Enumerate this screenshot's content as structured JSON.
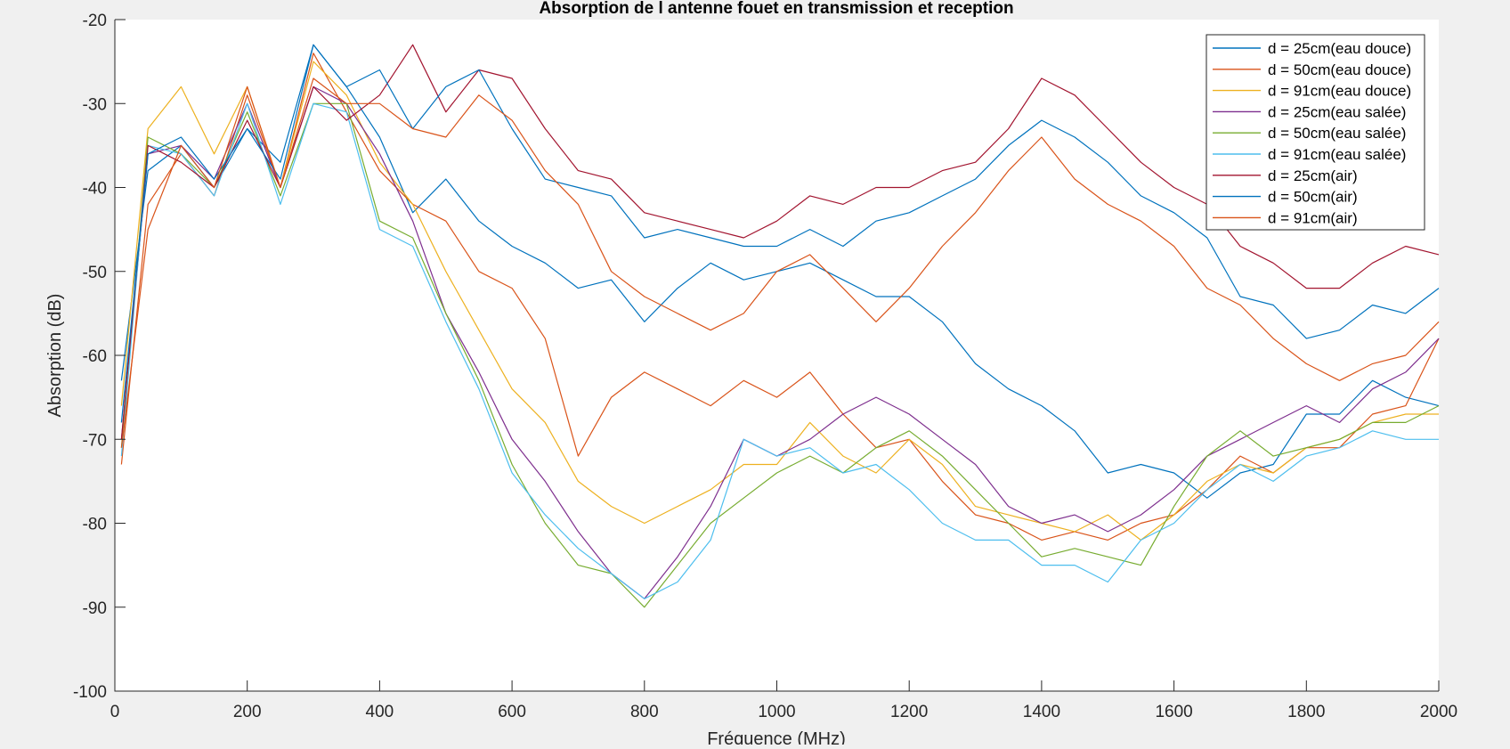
{
  "chart_data": {
    "type": "line",
    "title": "Absorption de l antenne fouet en transmission et reception",
    "xlabel": "Fréquence (MHz)",
    "ylabel": "Absorption (dB)",
    "xlim": [
      0,
      2000
    ],
    "ylim": [
      -100,
      -20
    ],
    "x_ticks": [
      0,
      200,
      400,
      600,
      800,
      1000,
      1200,
      1400,
      1600,
      1800,
      2000
    ],
    "y_ticks": [
      -20,
      -30,
      -40,
      -50,
      -60,
      -70,
      -80,
      -90,
      -100
    ],
    "x_tick_labels": [
      "0",
      "200",
      "400",
      "600",
      "800",
      "1000",
      "1200",
      "1400",
      "1600",
      "1800",
      "2000"
    ],
    "y_tick_labels": [
      "-20",
      "-30",
      "-40",
      "-50",
      "-60",
      "-70",
      "-80",
      "-90",
      "-100"
    ],
    "grid": false,
    "legend_position": "top-right",
    "x": [
      10,
      50,
      100,
      150,
      200,
      250,
      300,
      350,
      400,
      450,
      500,
      550,
      600,
      650,
      700,
      750,
      800,
      850,
      900,
      950,
      1000,
      1050,
      1100,
      1150,
      1200,
      1250,
      1300,
      1350,
      1400,
      1450,
      1500,
      1550,
      1600,
      1650,
      1700,
      1750,
      1800,
      1850,
      1900,
      1950,
      2000
    ],
    "series": [
      {
        "name": "d = 25cm(eau douce)",
        "color": "#0072BD",
        "values": [
          -63,
          -38,
          -35,
          -40,
          -33,
          -37,
          -23,
          -28,
          -34,
          -43,
          -39,
          -44,
          -47,
          -49,
          -52,
          -51,
          -56,
          -52,
          -49,
          -51,
          -50,
          -49,
          -51,
          -53,
          -53,
          -56,
          -61,
          -64,
          -66,
          -69,
          -74,
          -73,
          -74,
          -77,
          -74,
          -73,
          -67,
          -67,
          -63,
          -65,
          -66
        ]
      },
      {
        "name": "d = 50cm(eau douce)",
        "color": "#D95319",
        "values": [
          -73,
          -42,
          -36,
          -41,
          -29,
          -40,
          -24,
          -31,
          -38,
          -42,
          -44,
          -50,
          -52,
          -58,
          -72,
          -65,
          -62,
          -64,
          -66,
          -63,
          -65,
          -62,
          -67,
          -71,
          -70,
          -75,
          -79,
          -80,
          -82,
          -81,
          -82,
          -80,
          -79,
          -76,
          -72,
          -74,
          -71,
          -71,
          -67,
          -66,
          -58
        ]
      },
      {
        "name": "d = 91cm(eau douce)",
        "color": "#EDB120",
        "values": [
          -66,
          -33,
          -28,
          -36,
          -28,
          -40,
          -25,
          -29,
          -37,
          -42,
          -50,
          -57,
          -64,
          -68,
          -75,
          -78,
          -80,
          -78,
          -76,
          -73,
          -73,
          -68,
          -72,
          -74,
          -70,
          -73,
          -78,
          -79,
          -80,
          -81,
          -79,
          -82,
          -79,
          -75,
          -73,
          -74,
          -71,
          -70,
          -68,
          -67,
          -67
        ]
      },
      {
        "name": "d = 25cm(eau salée)",
        "color": "#7E2F8E",
        "values": [
          -70,
          -36,
          -35,
          -39,
          -30,
          -40,
          -28,
          -30,
          -36,
          -44,
          -55,
          -62,
          -70,
          -75,
          -81,
          -86,
          -89,
          -84,
          -78,
          -70,
          -72,
          -70,
          -67,
          -65,
          -67,
          -70,
          -73,
          -78,
          -80,
          -79,
          -81,
          -79,
          -76,
          -72,
          -70,
          -68,
          -66,
          -68,
          -64,
          -62,
          -58
        ]
      },
      {
        "name": "d = 50cm(eau salée)",
        "color": "#77AC30",
        "values": [
          -71,
          -34,
          -36,
          -40,
          -31,
          -41,
          -30,
          -30,
          -44,
          -46,
          -55,
          -63,
          -73,
          -80,
          -85,
          -86,
          -90,
          -85,
          -80,
          -77,
          -74,
          -72,
          -74,
          -71,
          -69,
          -72,
          -76,
          -80,
          -84,
          -83,
          -84,
          -85,
          -78,
          -72,
          -69,
          -72,
          -71,
          -70,
          -68,
          -68,
          -66
        ]
      },
      {
        "name": "d = 91cm(eau salée)",
        "color": "#4DBEEE",
        "values": [
          -72,
          -35,
          -36,
          -41,
          -30,
          -42,
          -30,
          -31,
          -45,
          -47,
          -56,
          -64,
          -74,
          -79,
          -83,
          -86,
          -89,
          -87,
          -82,
          -70,
          -72,
          -71,
          -74,
          -73,
          -76,
          -80,
          -82,
          -82,
          -85,
          -85,
          -87,
          -82,
          -80,
          -76,
          -73,
          -75,
          -72,
          -71,
          -69,
          -70,
          -70
        ]
      },
      {
        "name": "d = 25cm(air)",
        "color": "#A2142F",
        "values": [
          -70,
          -35,
          -37,
          -40,
          -32,
          -40,
          -28,
          -32,
          -29,
          -23,
          -31,
          -26,
          -27,
          -33,
          -38,
          -39,
          -43,
          -44,
          -45,
          -46,
          -44,
          -41,
          -42,
          -40,
          -40,
          -38,
          -37,
          -33,
          -27,
          -29,
          -33,
          -37,
          -40,
          -42,
          -47,
          -49,
          -52,
          -52,
          -49,
          -47,
          -48
        ]
      },
      {
        "name": "d = 50cm(air)",
        "color": "#0072BD",
        "values": [
          -68,
          -36,
          -34,
          -39,
          -33,
          -39,
          -23,
          -28,
          -26,
          -33,
          -28,
          -26,
          -33,
          -39,
          -40,
          -41,
          -46,
          -45,
          -46,
          -47,
          -47,
          -45,
          -47,
          -44,
          -43,
          -41,
          -39,
          -35,
          -32,
          -34,
          -37,
          -41,
          -43,
          -46,
          -53,
          -54,
          -58,
          -57,
          -54,
          -55,
          -52
        ]
      },
      {
        "name": "d = 91cm(air)",
        "color": "#D95319",
        "values": [
          -71,
          -45,
          -35,
          -40,
          -28,
          -40,
          -27,
          -30,
          -30,
          -33,
          -34,
          -29,
          -32,
          -38,
          -42,
          -50,
          -53,
          -55,
          -57,
          -55,
          -50,
          -48,
          -52,
          -56,
          -52,
          -47,
          -43,
          -38,
          -34,
          -39,
          -42,
          -44,
          -47,
          -52,
          -54,
          -58,
          -61,
          -63,
          -61,
          -60,
          -56
        ]
      }
    ]
  }
}
